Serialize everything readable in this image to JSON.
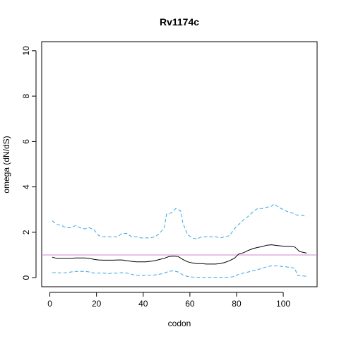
{
  "chart_data": {
    "type": "line",
    "title": "Rv1174c",
    "xlabel": "codon",
    "ylabel": "omega (dN/dS)",
    "xlim": [
      -3.5,
      114.5
    ],
    "ylim": [
      -0.4,
      10.4
    ],
    "x_ticks": [
      0,
      20,
      40,
      60,
      80,
      100
    ],
    "x_tick_labels": [
      "0",
      "20",
      "40",
      "60",
      "80",
      "100"
    ],
    "y_ticks": [
      0,
      2,
      4,
      6,
      8,
      10
    ],
    "y_tick_labels": [
      "0",
      "2",
      "4",
      "6",
      "8",
      "10"
    ],
    "reference_line": {
      "y": 1,
      "color": "#cc88cc"
    },
    "series": [
      {
        "role": "upper",
        "color": "#3aa6e0",
        "dash": true,
        "points": [
          [
            1,
            2.5
          ],
          [
            3,
            2.35
          ],
          [
            5,
            2.3
          ],
          [
            7,
            2.2
          ],
          [
            9,
            2.2
          ],
          [
            11,
            2.3
          ],
          [
            13,
            2.2
          ],
          [
            15,
            2.15
          ],
          [
            17,
            2.2
          ],
          [
            19,
            2.1
          ],
          [
            21,
            1.85
          ],
          [
            23,
            1.8
          ],
          [
            25,
            1.8
          ],
          [
            27,
            1.8
          ],
          [
            29,
            1.8
          ],
          [
            31,
            1.95
          ],
          [
            33,
            1.95
          ],
          [
            35,
            1.8
          ],
          [
            37,
            1.8
          ],
          [
            39,
            1.75
          ],
          [
            41,
            1.75
          ],
          [
            43,
            1.75
          ],
          [
            45,
            1.8
          ],
          [
            47,
            1.95
          ],
          [
            49,
            2.2
          ],
          [
            50,
            2.8
          ],
          [
            52,
            2.85
          ],
          [
            54,
            3.05
          ],
          [
            56,
            2.95
          ],
          [
            57,
            2.4
          ],
          [
            59,
            1.9
          ],
          [
            61,
            1.75
          ],
          [
            63,
            1.7
          ],
          [
            65,
            1.8
          ],
          [
            67,
            1.8
          ],
          [
            69,
            1.8
          ],
          [
            71,
            1.8
          ],
          [
            73,
            1.75
          ],
          [
            75,
            1.8
          ],
          [
            77,
            1.85
          ],
          [
            79,
            2.15
          ],
          [
            81,
            2.35
          ],
          [
            83,
            2.55
          ],
          [
            85,
            2.7
          ],
          [
            87,
            2.9
          ],
          [
            89,
            3.05
          ],
          [
            91,
            3.05
          ],
          [
            93,
            3.1
          ],
          [
            95,
            3.15
          ],
          [
            96,
            3.25
          ],
          [
            98,
            3.1
          ],
          [
            100,
            3.0
          ],
          [
            102,
            2.9
          ],
          [
            104,
            2.85
          ],
          [
            106,
            2.75
          ],
          [
            108,
            2.75
          ],
          [
            110,
            2.7
          ]
        ]
      },
      {
        "role": "mean",
        "color": "#000000",
        "dash": false,
        "points": [
          [
            1,
            0.9
          ],
          [
            3,
            0.85
          ],
          [
            5,
            0.85
          ],
          [
            7,
            0.85
          ],
          [
            9,
            0.85
          ],
          [
            11,
            0.87
          ],
          [
            13,
            0.87
          ],
          [
            15,
            0.87
          ],
          [
            17,
            0.85
          ],
          [
            19,
            0.8
          ],
          [
            21,
            0.78
          ],
          [
            23,
            0.77
          ],
          [
            25,
            0.77
          ],
          [
            27,
            0.77
          ],
          [
            29,
            0.78
          ],
          [
            31,
            0.78
          ],
          [
            33,
            0.75
          ],
          [
            35,
            0.72
          ],
          [
            37,
            0.7
          ],
          [
            39,
            0.7
          ],
          [
            41,
            0.7
          ],
          [
            43,
            0.72
          ],
          [
            45,
            0.75
          ],
          [
            47,
            0.8
          ],
          [
            49,
            0.85
          ],
          [
            51,
            0.93
          ],
          [
            53,
            0.95
          ],
          [
            55,
            0.93
          ],
          [
            57,
            0.8
          ],
          [
            59,
            0.7
          ],
          [
            61,
            0.65
          ],
          [
            63,
            0.62
          ],
          [
            65,
            0.62
          ],
          [
            67,
            0.6
          ],
          [
            69,
            0.6
          ],
          [
            71,
            0.6
          ],
          [
            73,
            0.62
          ],
          [
            75,
            0.67
          ],
          [
            77,
            0.75
          ],
          [
            79,
            0.85
          ],
          [
            81,
            1.05
          ],
          [
            83,
            1.1
          ],
          [
            85,
            1.2
          ],
          [
            87,
            1.28
          ],
          [
            89,
            1.33
          ],
          [
            91,
            1.37
          ],
          [
            93,
            1.43
          ],
          [
            95,
            1.45
          ],
          [
            97,
            1.42
          ],
          [
            99,
            1.4
          ],
          [
            101,
            1.38
          ],
          [
            103,
            1.38
          ],
          [
            105,
            1.35
          ],
          [
            107,
            1.15
          ],
          [
            110,
            1.08
          ]
        ]
      },
      {
        "role": "lower",
        "color": "#3aa6e0",
        "dash": true,
        "points": [
          [
            1,
            0.22
          ],
          [
            3,
            0.22
          ],
          [
            5,
            0.2
          ],
          [
            7,
            0.22
          ],
          [
            9,
            0.25
          ],
          [
            11,
            0.28
          ],
          [
            13,
            0.28
          ],
          [
            15,
            0.28
          ],
          [
            17,
            0.25
          ],
          [
            19,
            0.2
          ],
          [
            21,
            0.2
          ],
          [
            23,
            0.2
          ],
          [
            25,
            0.18
          ],
          [
            27,
            0.2
          ],
          [
            29,
            0.2
          ],
          [
            31,
            0.22
          ],
          [
            33,
            0.2
          ],
          [
            35,
            0.15
          ],
          [
            37,
            0.1
          ],
          [
            39,
            0.1
          ],
          [
            41,
            0.1
          ],
          [
            43,
            0.1
          ],
          [
            45,
            0.12
          ],
          [
            47,
            0.15
          ],
          [
            49,
            0.2
          ],
          [
            51,
            0.28
          ],
          [
            53,
            0.3
          ],
          [
            55,
            0.25
          ],
          [
            57,
            0.12
          ],
          [
            59,
            0.05
          ],
          [
            61,
            0.03
          ],
          [
            63,
            0.02
          ],
          [
            65,
            0.02
          ],
          [
            67,
            0.02
          ],
          [
            69,
            0.02
          ],
          [
            71,
            0.02
          ],
          [
            73,
            0.02
          ],
          [
            75,
            0.02
          ],
          [
            77,
            0.02
          ],
          [
            79,
            0.05
          ],
          [
            81,
            0.15
          ],
          [
            83,
            0.2
          ],
          [
            85,
            0.25
          ],
          [
            87,
            0.3
          ],
          [
            89,
            0.35
          ],
          [
            91,
            0.42
          ],
          [
            93,
            0.48
          ],
          [
            95,
            0.52
          ],
          [
            97,
            0.52
          ],
          [
            99,
            0.5
          ],
          [
            101,
            0.48
          ],
          [
            103,
            0.45
          ],
          [
            105,
            0.42
          ],
          [
            106,
            0.1
          ],
          [
            108,
            0.08
          ],
          [
            110,
            0.06
          ]
        ]
      }
    ]
  }
}
